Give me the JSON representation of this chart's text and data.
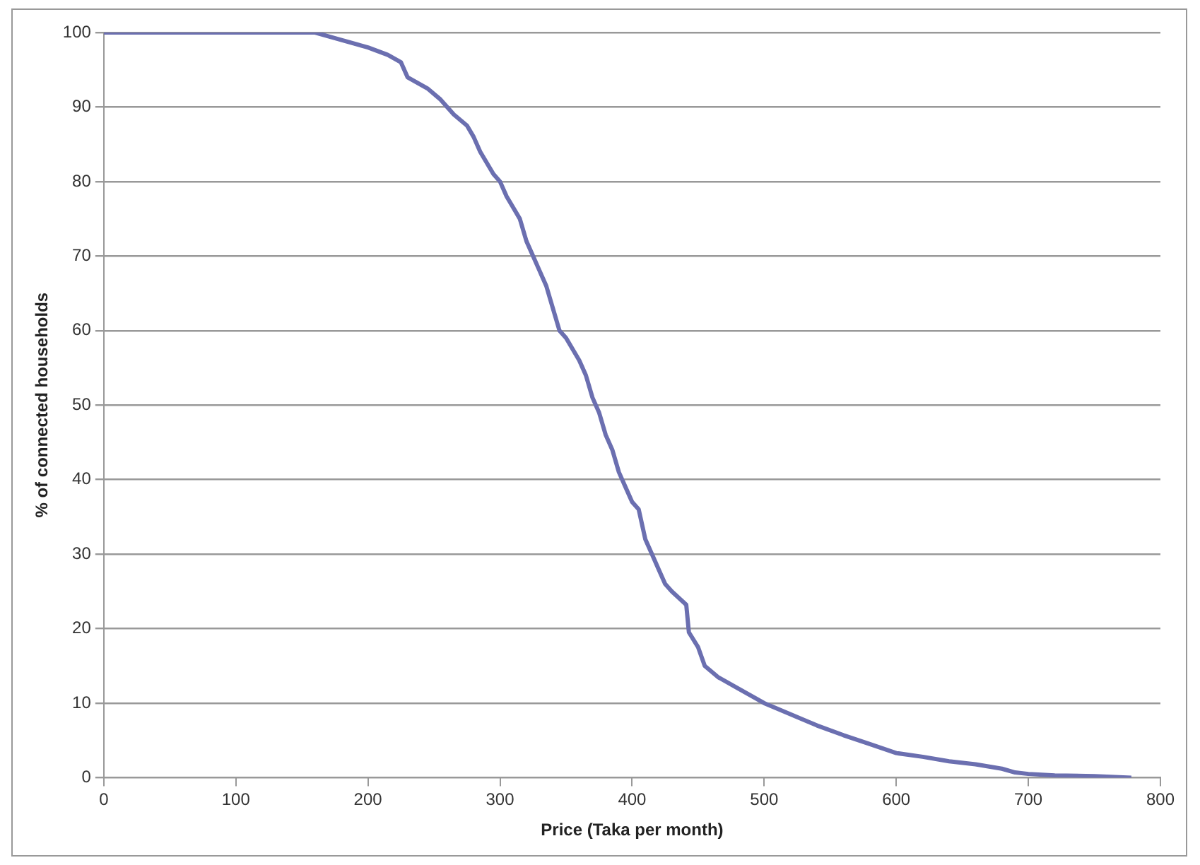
{
  "chart_data": {
    "type": "line",
    "xlabel": "Price (Taka per month)",
    "ylabel": "% of connected households",
    "x": [
      0,
      160,
      170,
      180,
      200,
      215,
      225,
      230,
      245,
      255,
      265,
      275,
      280,
      285,
      295,
      300,
      305,
      310,
      315,
      320,
      325,
      330,
      335,
      340,
      345,
      350,
      360,
      365,
      370,
      375,
      380,
      385,
      390,
      395,
      400,
      405,
      410,
      415,
      420,
      425,
      430,
      441,
      443,
      450,
      455,
      465,
      480,
      490,
      500,
      520,
      540,
      560,
      580,
      600,
      620,
      640,
      660,
      680,
      690,
      700,
      720,
      750,
      778
    ],
    "series": [
      {
        "color": "#6b6fb0",
        "values": [
          100,
          100,
          99.5,
          99,
          98,
          97,
          96,
          94,
          92.5,
          91,
          89,
          87.5,
          86,
          84,
          81,
          80,
          78,
          76.5,
          75,
          72,
          70,
          68,
          66,
          63,
          60,
          59,
          56,
          54,
          51,
          49,
          46,
          44,
          41,
          39,
          37,
          36,
          32,
          30,
          28,
          26,
          25,
          23.2,
          19.5,
          17.5,
          15,
          13.5,
          12,
          11,
          10,
          8.5,
          7,
          5.7,
          4.5,
          3.3,
          2.8,
          2.2,
          1.8,
          1.2,
          0.7,
          0.5,
          0.3,
          0.2,
          0
        ]
      }
    ],
    "xlim": [
      0,
      800
    ],
    "xticks": [
      0,
      100,
      200,
      300,
      400,
      500,
      600,
      700,
      800
    ],
    "ylim": [
      0,
      100
    ],
    "yticks": [
      0,
      10,
      20,
      30,
      40,
      50,
      60,
      70,
      80,
      90,
      100
    ],
    "grid": "y",
    "legend": false,
    "marker": "none",
    "line_style": "solid"
  }
}
